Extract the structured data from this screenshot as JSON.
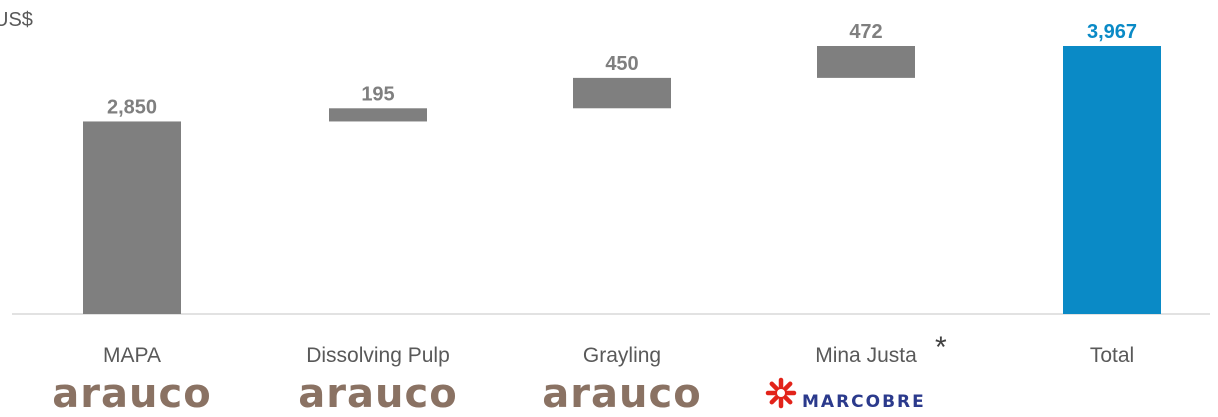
{
  "chart_data": {
    "type": "waterfall",
    "unit_label": "US$",
    "categories": [
      "MAPA",
      "Dissolving Pulp",
      "Grayling",
      "Mina Justa",
      "Total"
    ],
    "steps": [
      {
        "category": "MAPA",
        "value": 2850,
        "label": "2,850",
        "kind": "base"
      },
      {
        "category": "Dissolving Pulp",
        "value": 195,
        "label": "195",
        "kind": "increment"
      },
      {
        "category": "Grayling",
        "value": 450,
        "label": "450",
        "kind": "increment"
      },
      {
        "category": "Mina Justa",
        "value": 472,
        "label": "472",
        "kind": "increment"
      },
      {
        "category": "Total",
        "value": 3967,
        "label": "3,967",
        "kind": "total"
      }
    ],
    "annotations": [
      {
        "category": "Mina Justa",
        "text": "*"
      }
    ],
    "logos": [
      "arauco",
      "arauco",
      "arauco",
      "marcobre",
      ""
    ],
    "colors": {
      "bar": "#7f7f7f",
      "total": "#0a8ac6",
      "label": "#7f7f7f",
      "total_label": "#0a8ac6"
    },
    "ylim": [
      0,
      4100
    ],
    "grid": false,
    "legend": "none"
  }
}
